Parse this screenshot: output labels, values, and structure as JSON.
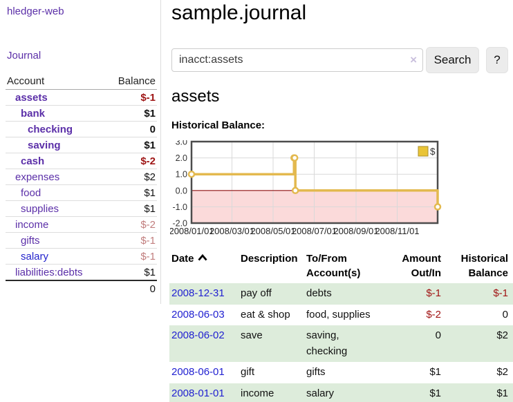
{
  "app": {
    "brand": "hledger-web"
  },
  "sidebar": {
    "journal_link": "Journal",
    "table": {
      "account_header": "Account",
      "balance_header": "Balance",
      "accounts": [
        {
          "name": "assets",
          "balance": "$-1"
        },
        {
          "name": "bank",
          "balance": "$1"
        },
        {
          "name": "checking",
          "balance": "0"
        },
        {
          "name": "saving",
          "balance": "$1"
        },
        {
          "name": "cash",
          "balance": "$-2"
        },
        {
          "name": "expenses",
          "balance": "$2"
        },
        {
          "name": "food",
          "balance": "$1"
        },
        {
          "name": "supplies",
          "balance": "$1"
        },
        {
          "name": "income",
          "balance": "$-2"
        },
        {
          "name": "gifts",
          "balance": "$-1"
        },
        {
          "name": "salary",
          "balance": "$-1"
        },
        {
          "name": "liabilities:debts",
          "balance": "$1"
        }
      ],
      "total": "0"
    }
  },
  "header": {
    "title": "sample.journal"
  },
  "search": {
    "query": "inacct:assets",
    "clear_icon": "×",
    "button_label": "Search",
    "help_label": "?"
  },
  "account_page": {
    "title": "assets",
    "chart_label": "Historical Balance:"
  },
  "chart_data": {
    "type": "line",
    "step": true,
    "title": "Historical Balance:",
    "legend_position": "top-right",
    "xlim": [
      "2008/01/01",
      "2008/12/31"
    ],
    "ylim": [
      -2.0,
      3.0
    ],
    "y_ticks": [
      3.0,
      2.0,
      1.0,
      0.0,
      -1.0,
      -2.0
    ],
    "x_ticks": [
      "2008/01/01",
      "2008/03/01",
      "2008/05/01",
      "2008/07/01",
      "2008/09/01",
      "2008/11/01"
    ],
    "series": [
      {
        "name": "$",
        "points": [
          {
            "date": "2008/01/01",
            "value": 1
          },
          {
            "date": "2008/06/01",
            "value": 2
          },
          {
            "date": "2008/06/02",
            "value": 2
          },
          {
            "date": "2008/06/03",
            "value": 0
          },
          {
            "date": "2008/12/31",
            "value": -1
          }
        ]
      }
    ],
    "colors": {
      "line": "#e3b94f",
      "marker_fill": "#ffffff",
      "legend_fill": "#e9c436",
      "legend_stroke": "#a98f2f",
      "negative_region": "#fbdada",
      "zero_line": "#8f1010",
      "grid": "#d9d9d9",
      "border": "#4c4c4c",
      "tick_text": "#333333"
    }
  },
  "register": {
    "headers": {
      "date": "Date",
      "description": "Description",
      "accounts": "To/From\nAccount(s)",
      "amount": "Amount\nOut/In",
      "balance": "Historical\nBalance"
    },
    "rows": [
      {
        "date": "2008-12-31",
        "description": "pay off",
        "accounts": "debts",
        "amount": "$-1",
        "balance": "$-1"
      },
      {
        "date": "2008-06-03",
        "description": "eat & shop",
        "accounts": "food, supplies",
        "amount": "$-2",
        "balance": "0"
      },
      {
        "date": "2008-06-02",
        "description": "save",
        "accounts": "saving, checking",
        "amount": "0",
        "balance": "$2"
      },
      {
        "date": "2008-06-01",
        "description": "gift",
        "accounts": "gifts",
        "amount": "$1",
        "balance": "$2"
      },
      {
        "date": "2008-01-01",
        "description": "income",
        "accounts": "salary",
        "amount": "$1",
        "balance": "$1"
      }
    ]
  }
}
